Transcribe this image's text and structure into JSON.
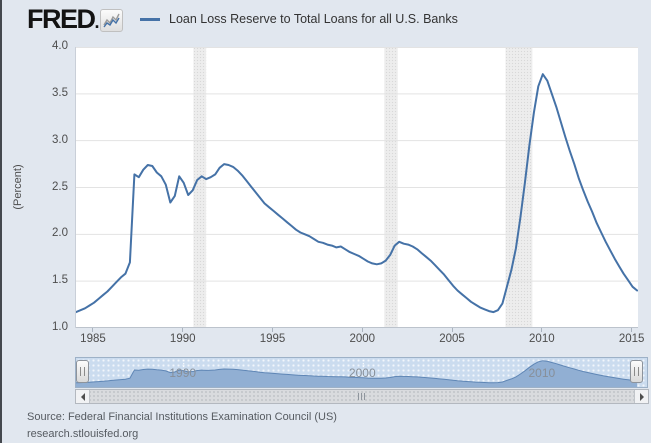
{
  "header": {
    "logo": "FRED",
    "logo_suffix": ".",
    "legend_label": "Loan Loss Reserve to Total Loans for all U.S. Banks"
  },
  "colors": {
    "accent_line": "#4572a7",
    "page_background": "#e1e7ef",
    "plot_background": "#ffffff",
    "recession_band": "#ededed",
    "mini_fill": "#91afd3",
    "mini_stroke": "#5f86b5",
    "gridline": "#e3e3e3"
  },
  "footer": {
    "source": "Source: Federal Financial Institutions Examination Council (US)",
    "site": "research.stlouisfed.org"
  },
  "chart_data": {
    "type": "line",
    "title": "Loan Loss Reserve to Total Loans for all U.S. Banks",
    "ylabel": "(Percent)",
    "xlabel": "",
    "x_range": [
      1984.0,
      2015.3
    ],
    "y_range": [
      1.0,
      4.0
    ],
    "grid": "horizontal",
    "legend_position": "top",
    "y_ticks": [
      {
        "label": "4.0",
        "value": 4.0
      },
      {
        "label": "3.5",
        "value": 3.5
      },
      {
        "label": "3.0",
        "value": 3.0
      },
      {
        "label": "2.5",
        "value": 2.5
      },
      {
        "label": "2.0",
        "value": 2.0
      },
      {
        "label": "1.5",
        "value": 1.5
      },
      {
        "label": "1.0",
        "value": 1.0
      }
    ],
    "x_ticks": [
      {
        "label": "1985",
        "value": 1985
      },
      {
        "label": "1990",
        "value": 1990
      },
      {
        "label": "1995",
        "value": 1995
      },
      {
        "label": "2000",
        "value": 2000
      },
      {
        "label": "2005",
        "value": 2005
      },
      {
        "label": "2010",
        "value": 2010
      },
      {
        "label": "2015",
        "value": 2015
      }
    ],
    "recessions": [
      {
        "start": 1990.54,
        "end": 1991.25
      },
      {
        "start": 2001.17,
        "end": 2001.92
      },
      {
        "start": 2007.92,
        "end": 2009.42
      }
    ],
    "series": [
      {
        "name": "Loan Loss Reserve to Total Loans for all U.S. Banks",
        "frequency": "quarterly",
        "x_start": 1984.0,
        "x_step": 0.25,
        "values": [
          1.17,
          1.19,
          1.21,
          1.24,
          1.27,
          1.31,
          1.35,
          1.39,
          1.44,
          1.49,
          1.54,
          1.58,
          1.7,
          2.64,
          2.61,
          2.69,
          2.74,
          2.73,
          2.66,
          2.62,
          2.53,
          2.34,
          2.41,
          2.62,
          2.55,
          2.42,
          2.47,
          2.58,
          2.62,
          2.59,
          2.61,
          2.64,
          2.71,
          2.75,
          2.74,
          2.72,
          2.68,
          2.63,
          2.57,
          2.51,
          2.45,
          2.39,
          2.33,
          2.29,
          2.25,
          2.21,
          2.17,
          2.13,
          2.09,
          2.05,
          2.02,
          2.0,
          1.98,
          1.95,
          1.92,
          1.91,
          1.89,
          1.88,
          1.86,
          1.87,
          1.84,
          1.81,
          1.79,
          1.77,
          1.74,
          1.71,
          1.69,
          1.68,
          1.69,
          1.72,
          1.78,
          1.88,
          1.92,
          1.9,
          1.89,
          1.87,
          1.84,
          1.8,
          1.76,
          1.72,
          1.67,
          1.62,
          1.57,
          1.51,
          1.45,
          1.4,
          1.36,
          1.32,
          1.28,
          1.25,
          1.22,
          1.2,
          1.18,
          1.17,
          1.19,
          1.26,
          1.44,
          1.62,
          1.85,
          2.18,
          2.55,
          2.95,
          3.3,
          3.58,
          3.71,
          3.64,
          3.5,
          3.36,
          3.2,
          3.04,
          2.89,
          2.75,
          2.6,
          2.47,
          2.35,
          2.24,
          2.12,
          2.02,
          1.92,
          1.83,
          1.74,
          1.66,
          1.58,
          1.51,
          1.44,
          1.4
        ]
      }
    ],
    "mini_map": {
      "labels": [
        {
          "label": "1990",
          "value": 1990
        },
        {
          "label": "2000",
          "value": 2000
        },
        {
          "label": "2010",
          "value": 2010
        }
      ],
      "y_range": [
        0.8,
        3.9
      ]
    }
  }
}
